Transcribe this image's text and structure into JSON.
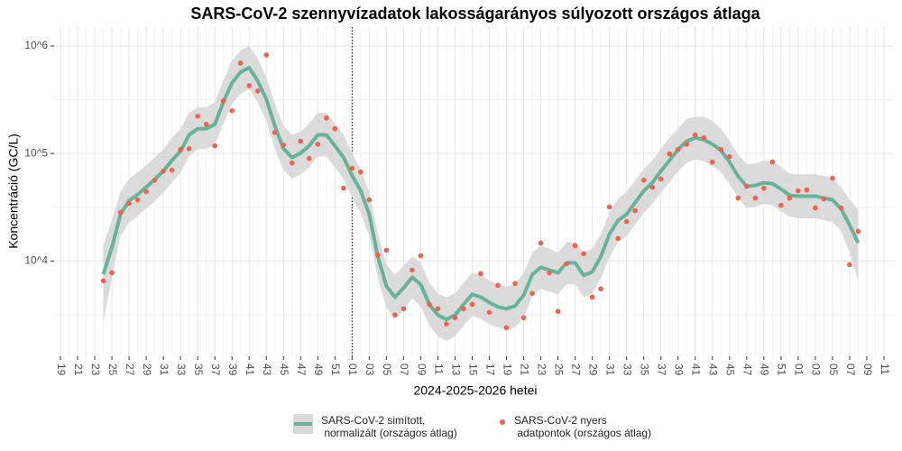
{
  "chart_data": {
    "type": "line",
    "title": "SARS-CoV-2 szennyvízadatok lakosságarányos súlyozott országos átlaga",
    "x_label": "2024-2025-2026 hetei",
    "y_label": "Koncentráció (GC/L)",
    "categories": [
      "19",
      null,
      "21",
      null,
      "23",
      null,
      "25",
      null,
      "27",
      null,
      "29",
      null,
      "31",
      null,
      "33",
      null,
      "35",
      null,
      "37",
      null,
      "39",
      null,
      "41",
      null,
      "43",
      null,
      "45",
      null,
      "47",
      null,
      "49",
      null,
      "51",
      null,
      "01",
      null,
      "03",
      null,
      "05",
      null,
      "07",
      null,
      "09",
      null,
      "11",
      null,
      "13",
      null,
      "15",
      null,
      "17",
      null,
      "19",
      null,
      "21",
      null,
      "23",
      null,
      "25",
      null,
      "27",
      null,
      "29",
      null,
      "31",
      null,
      "33",
      null,
      "35",
      null,
      "37",
      null,
      "39",
      null,
      "41",
      null,
      "43",
      null,
      "45",
      null,
      "47",
      null,
      "49",
      null,
      "51",
      null,
      "01",
      null,
      "03",
      null,
      "05",
      null,
      "07",
      null,
      "09",
      null,
      "11"
    ],
    "log_y": true,
    "ylim": [
      1300,
      1500000
    ],
    "yticks": [
      {
        "value": 10000,
        "label": "10^4"
      },
      {
        "value": 100000,
        "label": "10^5"
      },
      {
        "value": 1000000,
        "label": "10^6"
      }
    ],
    "grid": true,
    "vline_at": 34,
    "band_color": "#d9d9d9",
    "legend": "bottom",
    "series": [
      {
        "name": "SARS-CoV-2 simított,\n normalizált (országos átlag)",
        "color": "#66b39a",
        "kind": "line",
        "values": [
          null,
          null,
          null,
          null,
          null,
          7500,
          13400,
          27200,
          36400,
          41600,
          48500,
          57800,
          68700,
          86500,
          105000,
          149000,
          170000,
          170000,
          187000,
          303000,
          454000,
          571000,
          630000,
          472000,
          321000,
          180000,
          111000,
          91700,
          101000,
          118000,
          149000,
          149000,
          118000,
          91700,
          62400,
          45000,
          27200,
          11000,
          5830,
          4620,
          5610,
          7070,
          6060,
          3960,
          3150,
          2860,
          3150,
          3960,
          4900,
          4620,
          4120,
          3740,
          3600,
          3820,
          4810,
          7480,
          8740,
          8240,
          7780,
          9620,
          9620,
          7340,
          7940,
          11000,
          17800,
          23800,
          27200,
          35000,
          45000,
          53500,
          68700,
          86500,
          109000,
          130000,
          140000,
          135000,
          122000,
          107000,
          83300,
          61200,
          49500,
          50500,
          53500,
          52400,
          46700,
          40800,
          40100,
          40100,
          40100,
          38500,
          37100,
          30600,
          21600,
          14700,
          null,
          null,
          null
        ],
        "upper": [
          null,
          null,
          null,
          null,
          null,
          14000,
          24000,
          44000,
          58000,
          67000,
          78000,
          92000,
          110000,
          140000,
          170000,
          240000,
          270000,
          270000,
          300000,
          480000,
          730000,
          910000,
          1000000,
          760000,
          510000,
          290000,
          180000,
          150000,
          160000,
          190000,
          240000,
          240000,
          190000,
          150000,
          100000,
          72000,
          44000,
          18000,
          9300,
          7400,
          9000,
          11000,
          9700,
          6300,
          5000,
          4600,
          5000,
          6300,
          7800,
          7400,
          6600,
          6000,
          5800,
          6100,
          7700,
          12000,
          14000,
          13000,
          12000,
          15000,
          15000,
          12000,
          13000,
          18000,
          28000,
          38000,
          44000,
          56000,
          72000,
          86000,
          110000,
          140000,
          170000,
          210000,
          220000,
          220000,
          200000,
          170000,
          130000,
          98000,
          79000,
          81000,
          86000,
          84000,
          75000,
          65000,
          64000,
          64000,
          64000,
          62000,
          59000,
          49000,
          37000,
          30000,
          null,
          null,
          null
        ],
        "lower": [
          null,
          null,
          null,
          null,
          null,
          2700,
          7000,
          17000,
          23000,
          26000,
          31000,
          36000,
          43000,
          54000,
          66000,
          94000,
          110000,
          110000,
          120000,
          190000,
          290000,
          360000,
          400000,
          300000,
          200000,
          110000,
          70000,
          58000,
          64000,
          74000,
          94000,
          94000,
          74000,
          58000,
          39000,
          28000,
          17000,
          6900,
          3700,
          2900,
          3500,
          4500,
          3800,
          2500,
          2000,
          1800,
          2000,
          2500,
          3100,
          2900,
          2600,
          2400,
          2300,
          2400,
          3000,
          4700,
          5500,
          5200,
          4900,
          6100,
          6100,
          4600,
          5000,
          6900,
          11000,
          15000,
          17000,
          22000,
          28000,
          34000,
          43000,
          54000,
          69000,
          82000,
          88000,
          85000,
          77000,
          67000,
          52000,
          39000,
          31000,
          32000,
          34000,
          33000,
          29000,
          26000,
          25000,
          25000,
          25000,
          24000,
          23000,
          19000,
          12000,
          6500,
          null,
          null,
          null
        ]
      },
      {
        "name": "SARS-CoV-2 nyers\n adatpontok (országos átlag)",
        "color": "#f2624a",
        "kind": "scatter",
        "values": [
          null,
          null,
          null,
          null,
          null,
          6550,
          7780,
          28300,
          34300,
          37100,
          44100,
          56600,
          68700,
          70000,
          109000,
          111000,
          222000,
          187000,
          118000,
          309000,
          250000,
          693000,
          428000,
          382000,
          825000,
          157000,
          120000,
          81700,
          130000,
          89900,
          122000,
          214000,
          170000,
          47600,
          72800,
          67300,
          37100,
          11400,
          12600,
          3150,
          3600,
          8240,
          11200,
          3960,
          3600,
          2600,
          2970,
          3600,
          3960,
          7640,
          3330,
          5940,
          2400,
          6180,
          2970,
          5000,
          14700,
          7780,
          3400,
          9440,
          13900,
          11700,
          4620,
          5500,
          31800,
          16200,
          23300,
          29400,
          56600,
          48500,
          57800,
          99000,
          109000,
          122000,
          149000,
          140000,
          83300,
          109000,
          93500,
          38500,
          49500,
          38500,
          47600,
          83300,
          33000,
          38500,
          45000,
          45800,
          31200,
          37800,
          58900,
          31200,
          9260,
          18900,
          null,
          null,
          null
        ]
      }
    ]
  }
}
